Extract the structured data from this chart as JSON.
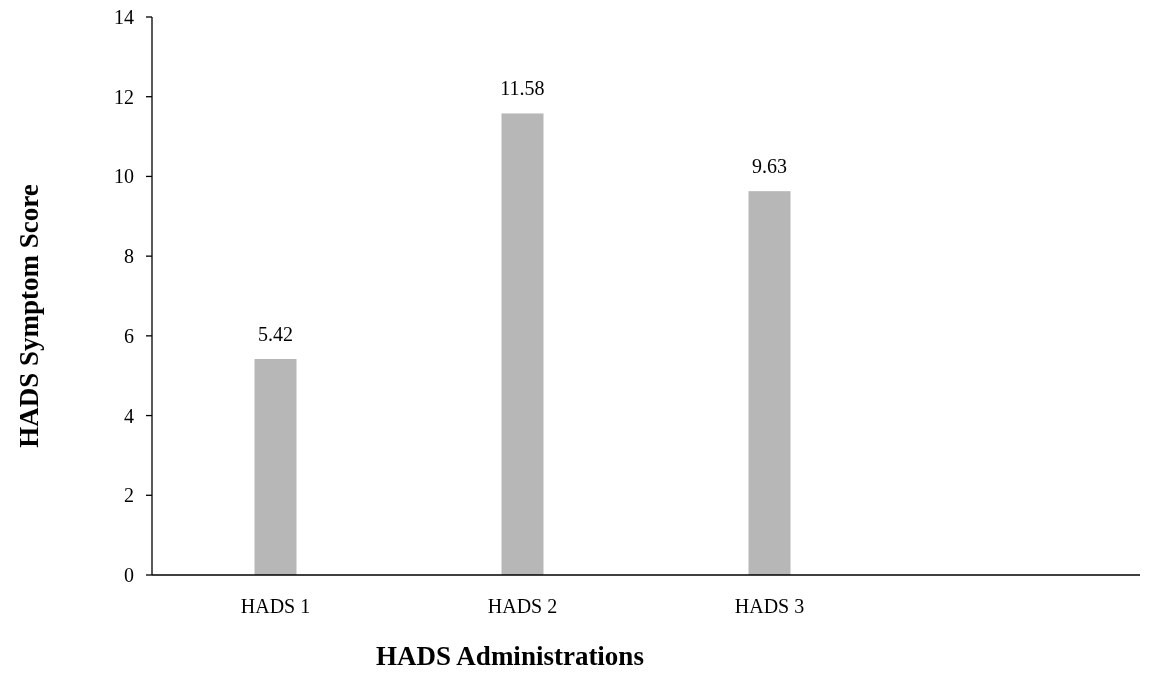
{
  "chart_data": {
    "type": "bar",
    "xlabel": "HADS Administrations",
    "ylabel": "HADS Symptom Score",
    "categories": [
      "HADS 1",
      "HADS 2",
      "HADS 3",
      null
    ],
    "values": [
      5.42,
      11.58,
      9.63,
      null
    ],
    "color": "#b8b7b8",
    "ylim": [
      0,
      14
    ],
    "yticks": [
      0,
      2,
      4,
      6,
      8,
      10,
      12,
      14
    ],
    "data_labels": true,
    "grid": false
  }
}
